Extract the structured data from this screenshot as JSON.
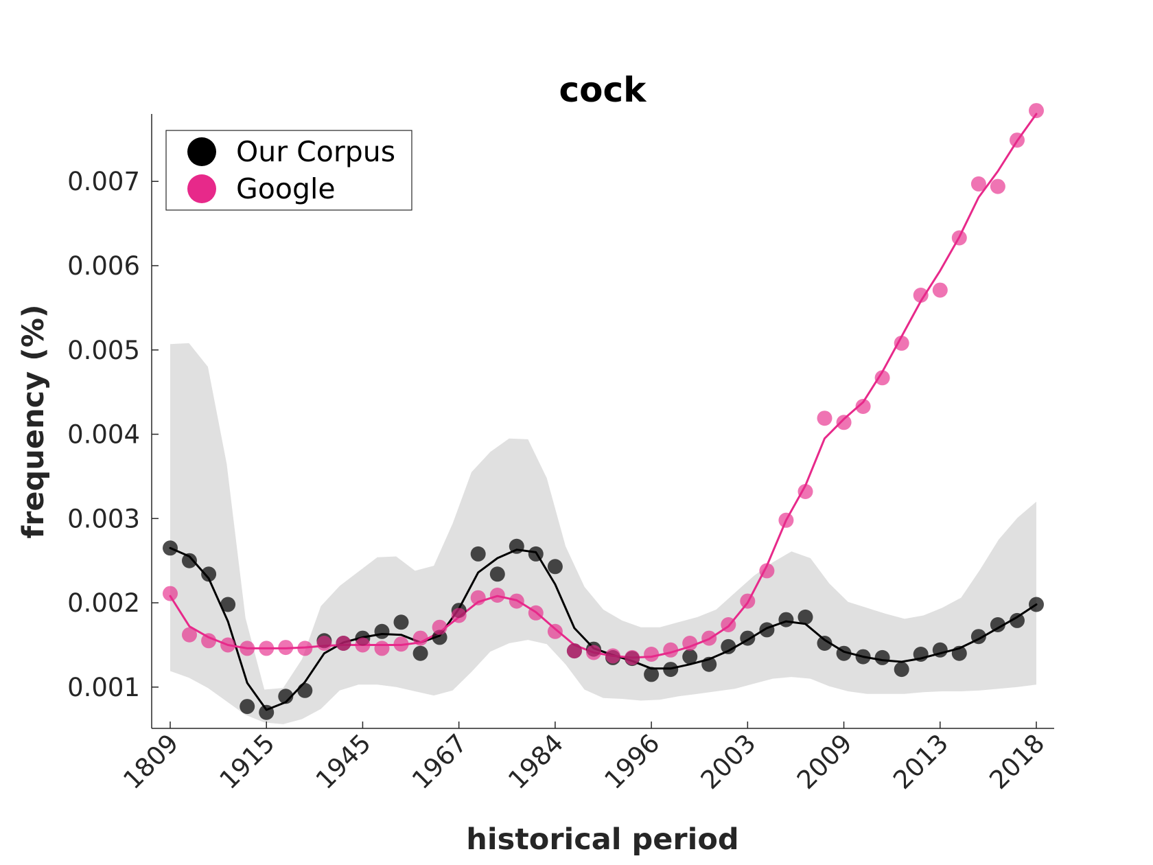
{
  "chart_data": {
    "type": "line",
    "title": "cock",
    "xlabel": "historical period",
    "ylabel": "frequency (%)",
    "ylim": [
      0.00051,
      0.0078
    ],
    "x_tick_labels": [
      "1809",
      "1915",
      "1945",
      "1967",
      "1984",
      "1996",
      "2003",
      "2009",
      "2013",
      "2018"
    ],
    "y_ticks": [
      0.001,
      0.002,
      0.003,
      0.004,
      0.005,
      0.006,
      0.007
    ],
    "y_tick_labels": [
      "0.001",
      "0.002",
      "0.003",
      "0.004",
      "0.005",
      "0.006",
      "0.007"
    ],
    "grid": false,
    "legend_position": "top-left",
    "series": [
      {
        "name": "Our Corpus",
        "color": "#000000",
        "points": [
          0.00265,
          0.0025,
          0.00234,
          0.00198,
          0.00077,
          0.0007,
          0.00089,
          0.00096,
          0.00155,
          0.00152,
          0.00158,
          0.00166,
          0.00177,
          0.0014,
          0.00159,
          0.00191,
          0.00258,
          0.00234,
          0.00267,
          0.00258,
          0.00243,
          0.00143,
          0.00145,
          0.00135,
          0.00134,
          0.00115,
          0.00121,
          0.00136,
          0.00127,
          0.00148,
          0.00158,
          0.00168,
          0.0018,
          0.00183,
          0.00152,
          0.0014,
          0.00136,
          0.00135,
          0.00121,
          0.00139,
          0.00144,
          0.0014,
          0.0016,
          0.00174,
          0.00179,
          0.00198
        ],
        "trend": [
          0.00265,
          0.00255,
          0.00229,
          0.00178,
          0.00105,
          0.00073,
          0.00082,
          0.00106,
          0.0014,
          0.00153,
          0.00159,
          0.00163,
          0.00162,
          0.00153,
          0.00161,
          0.00193,
          0.00236,
          0.00253,
          0.00263,
          0.0026,
          0.00222,
          0.0017,
          0.00146,
          0.00138,
          0.00131,
          0.00122,
          0.00122,
          0.00127,
          0.00133,
          0.00143,
          0.00156,
          0.0017,
          0.00178,
          0.00175,
          0.00156,
          0.00142,
          0.00136,
          0.00132,
          0.0013,
          0.00134,
          0.0014,
          0.00146,
          0.00157,
          0.0017,
          0.00183,
          0.00198
        ]
      },
      {
        "name": "Google",
        "color": "#e7298a",
        "points": [
          0.00211,
          0.00162,
          0.00155,
          0.0015,
          0.00146,
          0.00146,
          0.00147,
          0.00146,
          0.00152,
          0.00152,
          0.0015,
          0.00146,
          0.00151,
          0.00158,
          0.00171,
          0.00185,
          0.00206,
          0.00209,
          0.00202,
          0.00188,
          0.00166,
          0.00143,
          0.00141,
          0.00137,
          0.00135,
          0.00139,
          0.00144,
          0.00152,
          0.00158,
          0.00174,
          0.00202,
          0.00238,
          0.00298,
          0.00332,
          0.00419,
          0.00414,
          0.00433,
          0.00467,
          0.00508,
          0.00565,
          0.00571,
          0.00633,
          0.00697,
          0.00694,
          0.00749,
          0.00784
        ],
        "trend": [
          0.00208,
          0.00172,
          0.00159,
          0.0015,
          0.00146,
          0.00146,
          0.00146,
          0.00147,
          0.00149,
          0.0015,
          0.0015,
          0.0015,
          0.0015,
          0.00153,
          0.00165,
          0.00183,
          0.00201,
          0.00208,
          0.00203,
          0.00189,
          0.00169,
          0.0015,
          0.00141,
          0.00137,
          0.00135,
          0.00136,
          0.00141,
          0.00148,
          0.00157,
          0.00172,
          0.002,
          0.00244,
          0.00298,
          0.00339,
          0.00395,
          0.00418,
          0.00438,
          0.00474,
          0.00516,
          0.00558,
          0.00594,
          0.00634,
          0.00681,
          0.00712,
          0.00748,
          0.0078
        ]
      }
    ],
    "band": {
      "color": "#e0e0e0",
      "upper": [
        0.00507,
        0.00508,
        0.0048,
        0.00365,
        0.00182,
        0.00097,
        0.00099,
        0.00133,
        0.00196,
        0.0022,
        0.00237,
        0.00254,
        0.00255,
        0.00238,
        0.00244,
        0.00294,
        0.00355,
        0.00379,
        0.00395,
        0.00394,
        0.00348,
        0.00267,
        0.00219,
        0.00192,
        0.00179,
        0.00171,
        0.00171,
        0.00177,
        0.00183,
        0.00192,
        0.00212,
        0.00232,
        0.00248,
        0.00261,
        0.00253,
        0.00223,
        0.00201,
        0.00194,
        0.00187,
        0.00181,
        0.00185,
        0.00194,
        0.00206,
        0.00239,
        0.00275,
        0.00301,
        0.0032
      ],
      "lower": [
        0.00119,
        0.00111,
        0.00099,
        0.00083,
        0.00067,
        0.00058,
        0.00056,
        0.00062,
        0.00074,
        0.00096,
        0.00103,
        0.00103,
        0.001,
        0.00095,
        0.0009,
        0.00096,
        0.00118,
        0.00142,
        0.00152,
        0.00156,
        0.00151,
        0.00127,
        0.00097,
        0.00087,
        0.00086,
        0.00084,
        0.00085,
        0.00089,
        0.00092,
        0.00095,
        0.00098,
        0.00104,
        0.0011,
        0.00112,
        0.0011,
        0.00101,
        0.00095,
        0.00092,
        0.00092,
        0.00092,
        0.00094,
        0.00095,
        0.00095,
        0.00096,
        0.00098,
        0.001,
        0.00103
      ]
    }
  }
}
